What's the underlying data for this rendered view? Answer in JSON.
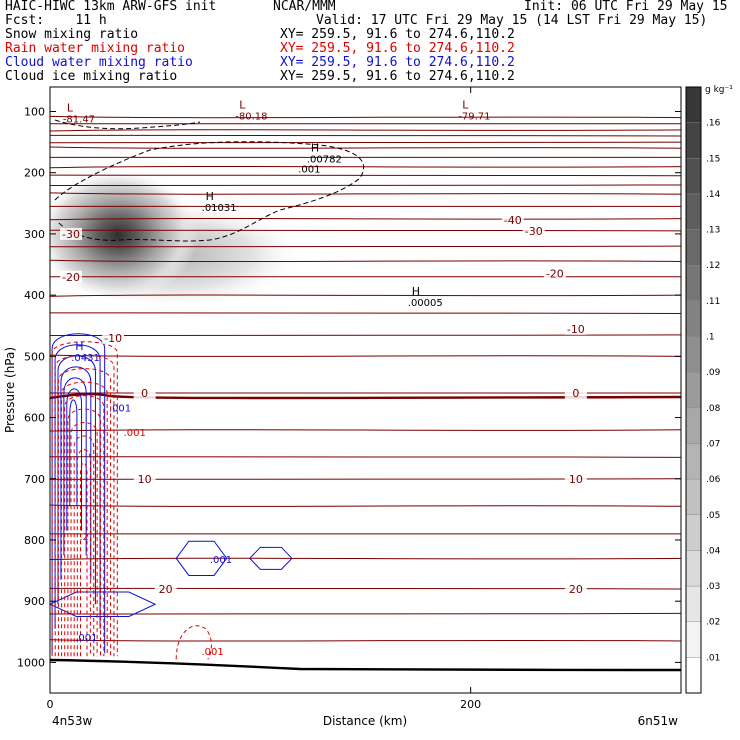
{
  "header": {
    "left1": "HAIC-HIWC 13km ARW-GFS init",
    "center1": "NCAR/MMM",
    "right1": "Init: 06 UTC Fri 29 May 15",
    "left2": "Fcst:    11 h",
    "right2": "Valid: 17 UTC Fri 29 May 15 (14 LST Fri 29 May 15)",
    "fields": [
      {
        "name": "Snow mixing ratio",
        "xy": "XY= 259.5, 91.6 to 274.6,110.2",
        "color": "#000000"
      },
      {
        "name": "Rain water mixing ratio",
        "xy": "XY= 259.5, 91.6 to 274.6,110.2",
        "color": "#e00000"
      },
      {
        "name": "Cloud water mixing ratio",
        "xy": "XY= 259.5, 91.6 to 274.6,110.2",
        "color": "#1010d0"
      },
      {
        "name": "Cloud ice mixing ratio",
        "xy": "XY= 259.5, 91.6 to 274.6,110.2",
        "color": "#000000"
      }
    ]
  },
  "chart_data": {
    "type": "cross-section contour",
    "xlabel": "Distance (km)",
    "ylabel": "Pressure (hPa)",
    "xlim": [
      0,
      300
    ],
    "ylim": [
      1050,
      60
    ],
    "x_ticks": [
      "0",
      "200"
    ],
    "y_ticks": [
      "100",
      "200",
      "300",
      "400",
      "500",
      "600",
      "700",
      "800",
      "900",
      "1000"
    ],
    "x_endpoints": {
      "left": "4n53w",
      "right": "6n51w"
    },
    "colorbar": {
      "unit": "g kg⁻¹",
      "labels": [
        ".01",
        ".02",
        ".03",
        ".04",
        ".05",
        ".06",
        ".07",
        ".08",
        ".09",
        ".1",
        ".11",
        ".12",
        ".13",
        ".14",
        ".15",
        ".16"
      ]
    },
    "temperature_labels": [
      {
        "text": "-40",
        "x": 220,
        "p": 277
      },
      {
        "text": "-30",
        "x": 10,
        "p": 300
      },
      {
        "text": "-30",
        "x": 230,
        "p": 295
      },
      {
        "text": "-20",
        "x": 10,
        "p": 370
      },
      {
        "text": "-20",
        "x": 240,
        "p": 365
      },
      {
        "text": "-10",
        "x": 30,
        "p": 470
      },
      {
        "text": "-10",
        "x": 250,
        "p": 455
      },
      {
        "text": "0",
        "x": 45,
        "p": 560
      },
      {
        "text": "0",
        "x": 250,
        "p": 560
      },
      {
        "text": "10",
        "x": 45,
        "p": 700
      },
      {
        "text": "10",
        "x": 250,
        "p": 700
      },
      {
        "text": "20",
        "x": 55,
        "p": 880
      },
      {
        "text": "20",
        "x": 250,
        "p": 880
      }
    ],
    "extrema": [
      {
        "letter": "L",
        "value": "-81.47",
        "x": 8,
        "p": 100,
        "color": "#7a0000"
      },
      {
        "letter": "L",
        "value": "-80.18",
        "x": 90,
        "p": 95,
        "color": "#7a0000"
      },
      {
        "letter": "L",
        "value": "-79.71",
        "x": 196,
        "p": 95,
        "color": "#7a0000"
      },
      {
        "letter": "H",
        "value": ".00782",
        "x": 124,
        "p": 165,
        "color": "#000000"
      },
      {
        "letter": "H",
        "value": ".01031",
        "x": 74,
        "p": 245,
        "color": "#000000"
      },
      {
        "letter": "H",
        "value": ".00005",
        "x": 172,
        "p": 400,
        "color": "#000000"
      },
      {
        "letter": "H",
        "value": ".0431",
        "x": 12,
        "p": 490,
        "color": "#1010d0"
      }
    ],
    "contour_labels": [
      {
        "text": ".001",
        "x": 118,
        "p": 200,
        "color": "#000000"
      },
      {
        "text": ".001",
        "x": 28,
        "p": 590,
        "color": "#1010d0"
      },
      {
        "text": ".001",
        "x": 35,
        "p": 630,
        "color": "#e00000"
      },
      {
        "text": ".001",
        "x": 76,
        "p": 838,
        "color": "#1010d0"
      },
      {
        "text": ".001",
        "x": 72,
        "p": 988,
        "color": "#e00000"
      },
      {
        "text": ".001",
        "x": 12,
        "p": 965,
        "color": "#1010d0"
      },
      {
        "text": ".2",
        "x": 14,
        "p": 800,
        "color": "#e00000"
      }
    ],
    "isotherm_pressures": [
      110,
      120,
      130,
      140,
      150,
      160,
      175,
      190,
      205,
      220,
      235,
      255,
      275,
      295,
      320,
      345,
      370,
      400,
      430,
      465,
      500,
      560,
      620,
      665,
      700,
      745,
      790,
      830,
      880,
      920,
      965
    ]
  }
}
